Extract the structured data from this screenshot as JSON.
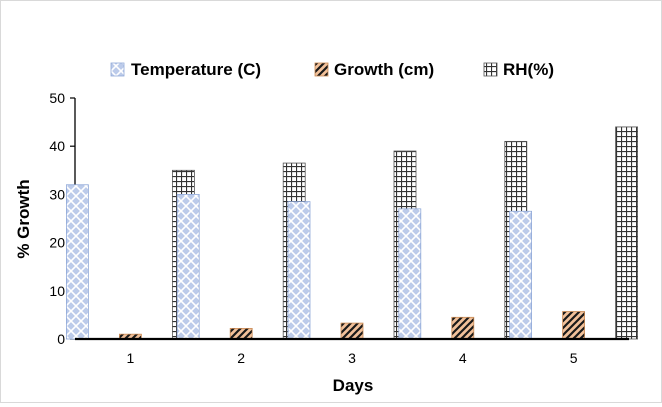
{
  "chart_data": {
    "type": "bar",
    "title": "",
    "xlabel": "Days",
    "ylabel": "% Growth",
    "categories": [
      "1",
      "2",
      "3",
      "4",
      "5"
    ],
    "ylim": [
      0,
      50
    ],
    "yticks": [
      0,
      10,
      20,
      30,
      40,
      50
    ],
    "grid": false,
    "legend_position": "top",
    "series": [
      {
        "name": "Temperature (C)",
        "values": [
          32,
          30,
          28.5,
          27,
          26.5
        ],
        "color": "#9db4e0",
        "pattern": "crosshatch"
      },
      {
        "name": "Growth (cm)",
        "values": [
          1.0,
          2.2,
          3.3,
          4.5,
          5.7
        ],
        "color": "#e8a06a",
        "pattern": "diagonal-stripes"
      },
      {
        "name": "RH(%)",
        "values": [
          35,
          36.5,
          39,
          41,
          44
        ],
        "color": "#c8c8c8",
        "pattern": "grid"
      }
    ]
  }
}
